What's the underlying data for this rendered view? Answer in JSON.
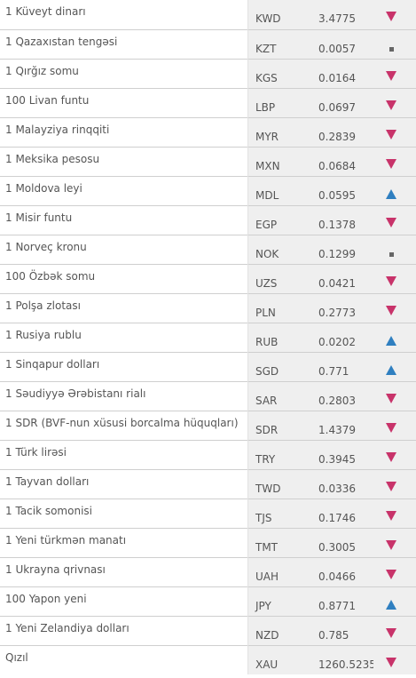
{
  "rows": [
    {
      "name": "1 Küveyt dinarı",
      "code": "KWD",
      "value": "3.4775",
      "trend": "down",
      "trend_icon": "triangle-down-icon"
    },
    {
      "name": "1 Qazaxıstan tengəsi",
      "code": "KZT",
      "value": "0.0057",
      "trend": "same",
      "trend_icon": "square-icon"
    },
    {
      "name": "1 Qırğız somu",
      "code": "KGS",
      "value": "0.0164",
      "trend": "down",
      "trend_icon": "triangle-down-icon"
    },
    {
      "name": "100 Livan funtu",
      "code": "LBP",
      "value": "0.0697",
      "trend": "down",
      "trend_icon": "triangle-down-icon"
    },
    {
      "name": "1 Malayziya rinqqiti",
      "code": "MYR",
      "value": "0.2839",
      "trend": "down",
      "trend_icon": "triangle-down-icon"
    },
    {
      "name": "1 Meksika pesosu",
      "code": "MXN",
      "value": "0.0684",
      "trend": "down",
      "trend_icon": "triangle-down-icon"
    },
    {
      "name": "1 Moldova leyi",
      "code": "MDL",
      "value": "0.0595",
      "trend": "up",
      "trend_icon": "triangle-up-icon"
    },
    {
      "name": "1 Misir funtu",
      "code": "EGP",
      "value": "0.1378",
      "trend": "down",
      "trend_icon": "triangle-down-icon"
    },
    {
      "name": "1 Norveç kronu",
      "code": "NOK",
      "value": "0.1299",
      "trend": "same",
      "trend_icon": "square-icon"
    },
    {
      "name": "100 Özbək somu",
      "code": "UZS",
      "value": "0.0421",
      "trend": "down",
      "trend_icon": "triangle-down-icon"
    },
    {
      "name": "1 Polşa zlotası",
      "code": "PLN",
      "value": "0.2773",
      "trend": "down",
      "trend_icon": "triangle-down-icon"
    },
    {
      "name": "1 Rusiya rublu",
      "code": "RUB",
      "value": "0.0202",
      "trend": "up",
      "trend_icon": "triangle-up-icon"
    },
    {
      "name": "1 Sinqapur dolları",
      "code": "SGD",
      "value": "0.771",
      "trend": "up",
      "trend_icon": "triangle-up-icon"
    },
    {
      "name": "1 Səudiyyə Ərəbistanı rialı",
      "code": "SAR",
      "value": "0.2803",
      "trend": "down",
      "trend_icon": "triangle-down-icon"
    },
    {
      "name": "1 SDR (BVF-nun xüsusi borcalma hüquqları)",
      "code": "SDR",
      "value": "1.4379",
      "trend": "down",
      "trend_icon": "triangle-down-icon"
    },
    {
      "name": "1 Türk lirəsi",
      "code": "TRY",
      "value": "0.3945",
      "trend": "down",
      "trend_icon": "triangle-down-icon"
    },
    {
      "name": "1 Tayvan dolları",
      "code": "TWD",
      "value": "0.0336",
      "trend": "down",
      "trend_icon": "triangle-down-icon"
    },
    {
      "name": "1 Tacik somonisi",
      "code": "TJS",
      "value": "0.1746",
      "trend": "down",
      "trend_icon": "triangle-down-icon"
    },
    {
      "name": "1 Yeni türkmən manatı",
      "code": "TMT",
      "value": "0.3005",
      "trend": "down",
      "trend_icon": "triangle-down-icon"
    },
    {
      "name": "1 Ukrayna qrivnası",
      "code": "UAH",
      "value": "0.0466",
      "trend": "down",
      "trend_icon": "triangle-down-icon"
    },
    {
      "name": "100 Yapon yeni",
      "code": "JPY",
      "value": "0.8771",
      "trend": "up",
      "trend_icon": "triangle-up-icon"
    },
    {
      "name": "1 Yeni Zelandiya dolları",
      "code": "NZD",
      "value": "0.785",
      "trend": "down",
      "trend_icon": "triangle-down-icon"
    },
    {
      "name": "Qızıl",
      "code": "XAU",
      "value": "1260.5235",
      "trend": "down",
      "trend_icon": "triangle-down-icon"
    }
  ],
  "colors": {
    "down": "#c8336a",
    "up": "#2f7fc0",
    "same": "#666666",
    "cell_bg": "#efefef",
    "text": "#555555"
  }
}
